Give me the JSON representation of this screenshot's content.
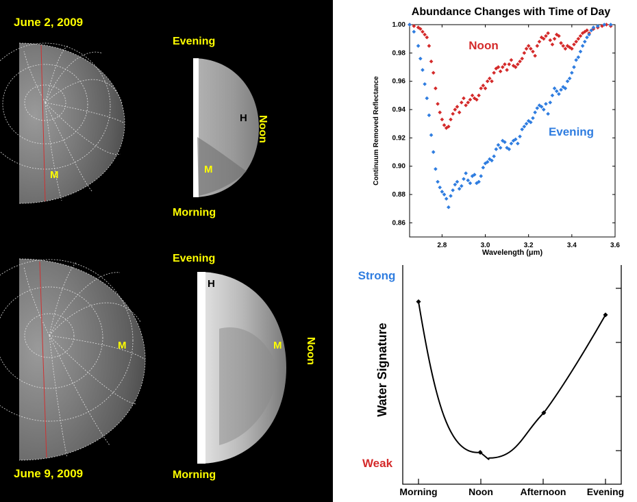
{
  "left_panel": {
    "top_date": "June 2, 2009",
    "bottom_date": "June 9, 2009",
    "top_evening": "Evening",
    "top_morning": "Morning",
    "top_noon": "Noon",
    "bottom_evening": "Evening",
    "bottom_morning": "Morning",
    "bottom_noon": "Noon",
    "marker_m": "M",
    "marker_h": "H"
  },
  "chart_data": [
    {
      "type": "scatter",
      "title": "Abundance Changes with Time of Day",
      "xlabel": "Wavelength (μm)",
      "ylabel": "Continuum Removed Reflectance",
      "xlim": [
        2.65,
        3.6
      ],
      "ylim": [
        0.85,
        1.0
      ],
      "x_ticks": [
        "2.8",
        "3.0",
        "3.2",
        "3.4",
        "3.6"
      ],
      "y_ticks": [
        "1.00",
        "0.98",
        "0.96",
        "0.94",
        "0.92",
        "0.90",
        "0.88",
        "0.86"
      ],
      "grid": false,
      "colors": {
        "noon": "#d42a2a",
        "evening": "#2f7de0"
      },
      "series": [
        {
          "name": "Noon",
          "label": "Noon",
          "color": "#d42a2a",
          "points": [
            [
              2.65,
              1.0
            ],
            [
              2.67,
              0.999
            ],
            [
              2.69,
              0.998
            ],
            [
              2.7,
              0.997
            ],
            [
              2.71,
              0.995
            ],
            [
              2.72,
              0.993
            ],
            [
              2.73,
              0.991
            ],
            [
              2.74,
              0.985
            ],
            [
              2.75,
              0.974
            ],
            [
              2.76,
              0.966
            ],
            [
              2.77,
              0.955
            ],
            [
              2.78,
              0.944
            ],
            [
              2.79,
              0.938
            ],
            [
              2.8,
              0.933
            ],
            [
              2.81,
              0.929
            ],
            [
              2.82,
              0.927
            ],
            [
              2.83,
              0.928
            ],
            [
              2.84,
              0.933
            ],
            [
              2.85,
              0.937
            ],
            [
              2.86,
              0.94
            ],
            [
              2.87,
              0.942
            ],
            [
              2.88,
              0.938
            ],
            [
              2.89,
              0.945
            ],
            [
              2.9,
              0.948
            ],
            [
              2.91,
              0.943
            ],
            [
              2.92,
              0.945
            ],
            [
              2.93,
              0.947
            ],
            [
              2.94,
              0.95
            ],
            [
              2.95,
              0.948
            ],
            [
              2.96,
              0.947
            ],
            [
              2.97,
              0.95
            ],
            [
              2.98,
              0.955
            ],
            [
              2.99,
              0.957
            ],
            [
              3.0,
              0.955
            ],
            [
              3.01,
              0.96
            ],
            [
              3.02,
              0.962
            ],
            [
              3.03,
              0.96
            ],
            [
              3.04,
              0.966
            ],
            [
              3.05,
              0.969
            ],
            [
              3.06,
              0.97
            ],
            [
              3.07,
              0.967
            ],
            [
              3.08,
              0.97
            ],
            [
              3.09,
              0.972
            ],
            [
              3.1,
              0.968
            ],
            [
              3.11,
              0.972
            ],
            [
              3.12,
              0.975
            ],
            [
              3.13,
              0.971
            ],
            [
              3.14,
              0.97
            ],
            [
              3.15,
              0.972
            ],
            [
              3.16,
              0.974
            ],
            [
              3.17,
              0.976
            ],
            [
              3.18,
              0.98
            ],
            [
              3.19,
              0.983
            ],
            [
              3.2,
              0.985
            ],
            [
              3.21,
              0.983
            ],
            [
              3.22,
              0.981
            ],
            [
              3.23,
              0.978
            ],
            [
              3.24,
              0.985
            ],
            [
              3.25,
              0.988
            ],
            [
              3.26,
              0.991
            ],
            [
              3.27,
              0.99
            ],
            [
              3.28,
              0.992
            ],
            [
              3.29,
              0.994
            ],
            [
              3.3,
              0.989
            ],
            [
              3.31,
              0.986
            ],
            [
              3.32,
              0.99
            ],
            [
              3.33,
              0.993
            ],
            [
              3.34,
              0.992
            ],
            [
              3.35,
              0.987
            ],
            [
              3.36,
              0.985
            ],
            [
              3.37,
              0.983
            ],
            [
              3.38,
              0.985
            ],
            [
              3.39,
              0.984
            ],
            [
              3.4,
              0.983
            ],
            [
              3.41,
              0.986
            ],
            [
              3.42,
              0.988
            ],
            [
              3.43,
              0.99
            ],
            [
              3.44,
              0.992
            ],
            [
              3.45,
              0.994
            ],
            [
              3.46,
              0.995
            ],
            [
              3.47,
              0.996
            ],
            [
              3.48,
              0.994
            ],
            [
              3.49,
              0.996
            ],
            [
              3.5,
              0.997
            ],
            [
              3.52,
              0.998
            ],
            [
              3.54,
              0.999
            ],
            [
              3.56,
              1.0
            ],
            [
              3.58,
              0.999
            ]
          ]
        },
        {
          "name": "Evening",
          "label": "Evening",
          "color": "#2f7de0",
          "points": [
            [
              2.65,
              1.0
            ],
            [
              2.67,
              0.995
            ],
            [
              2.69,
              0.985
            ],
            [
              2.7,
              0.976
            ],
            [
              2.71,
              0.968
            ],
            [
              2.72,
              0.958
            ],
            [
              2.73,
              0.948
            ],
            [
              2.74,
              0.936
            ],
            [
              2.75,
              0.922
            ],
            [
              2.76,
              0.91
            ],
            [
              2.77,
              0.898
            ],
            [
              2.78,
              0.889
            ],
            [
              2.79,
              0.885
            ],
            [
              2.8,
              0.882
            ],
            [
              2.81,
              0.88
            ],
            [
              2.82,
              0.877
            ],
            [
              2.83,
              0.871
            ],
            [
              2.84,
              0.879
            ],
            [
              2.85,
              0.883
            ],
            [
              2.86,
              0.887
            ],
            [
              2.87,
              0.889
            ],
            [
              2.88,
              0.884
            ],
            [
              2.89,
              0.886
            ],
            [
              2.9,
              0.891
            ],
            [
              2.91,
              0.895
            ],
            [
              2.92,
              0.89
            ],
            [
              2.93,
              0.888
            ],
            [
              2.94,
              0.893
            ],
            [
              2.95,
              0.894
            ],
            [
              2.96,
              0.888
            ],
            [
              2.97,
              0.889
            ],
            [
              2.98,
              0.893
            ],
            [
              2.99,
              0.899
            ],
            [
              3.0,
              0.902
            ],
            [
              3.01,
              0.903
            ],
            [
              3.02,
              0.905
            ],
            [
              3.03,
              0.904
            ],
            [
              3.04,
              0.907
            ],
            [
              3.05,
              0.912
            ],
            [
              3.06,
              0.915
            ],
            [
              3.07,
              0.913
            ],
            [
              3.08,
              0.918
            ],
            [
              3.09,
              0.917
            ],
            [
              3.1,
              0.913
            ],
            [
              3.11,
              0.912
            ],
            [
              3.12,
              0.916
            ],
            [
              3.13,
              0.918
            ],
            [
              3.14,
              0.919
            ],
            [
              3.15,
              0.916
            ],
            [
              3.16,
              0.921
            ],
            [
              3.17,
              0.926
            ],
            [
              3.18,
              0.928
            ],
            [
              3.19,
              0.93
            ],
            [
              3.2,
              0.932
            ],
            [
              3.21,
              0.931
            ],
            [
              3.22,
              0.934
            ],
            [
              3.23,
              0.938
            ],
            [
              3.24,
              0.941
            ],
            [
              3.25,
              0.943
            ],
            [
              3.26,
              0.942
            ],
            [
              3.27,
              0.94
            ],
            [
              3.28,
              0.944
            ],
            [
              3.29,
              0.937
            ],
            [
              3.3,
              0.945
            ],
            [
              3.31,
              0.95
            ],
            [
              3.32,
              0.955
            ],
            [
              3.33,
              0.953
            ],
            [
              3.34,
              0.951
            ],
            [
              3.35,
              0.954
            ],
            [
              3.36,
              0.956
            ],
            [
              3.37,
              0.955
            ],
            [
              3.38,
              0.96
            ],
            [
              3.39,
              0.962
            ],
            [
              3.4,
              0.966
            ],
            [
              3.41,
              0.97
            ],
            [
              3.42,
              0.975
            ],
            [
              3.43,
              0.977
            ],
            [
              3.44,
              0.981
            ],
            [
              3.45,
              0.985
            ],
            [
              3.46,
              0.988
            ],
            [
              3.47,
              0.991
            ],
            [
              3.48,
              0.993
            ],
            [
              3.49,
              0.996
            ],
            [
              3.5,
              0.998
            ],
            [
              3.52,
              0.999
            ],
            [
              3.55,
              1.0
            ],
            [
              3.58,
              1.0
            ]
          ]
        }
      ]
    },
    {
      "type": "line",
      "title": "",
      "xlabel": "",
      "ylabel": "Water Signature",
      "categories": [
        "Morning",
        "Noon",
        "Afternoon",
        "Evening"
      ],
      "y_top_label": "Strong",
      "y_bottom_label": "Weak",
      "y_top_color": "#2f7de0",
      "y_bottom_color": "#d42a2a",
      "ylim": [
        0,
        1
      ],
      "points": [
        [
          0.0,
          0.86
        ],
        [
          0.33,
          0.06
        ],
        [
          0.67,
          0.27
        ],
        [
          1.0,
          0.79
        ]
      ],
      "curve_minimum": [
        0.38,
        0.03
      ]
    }
  ]
}
